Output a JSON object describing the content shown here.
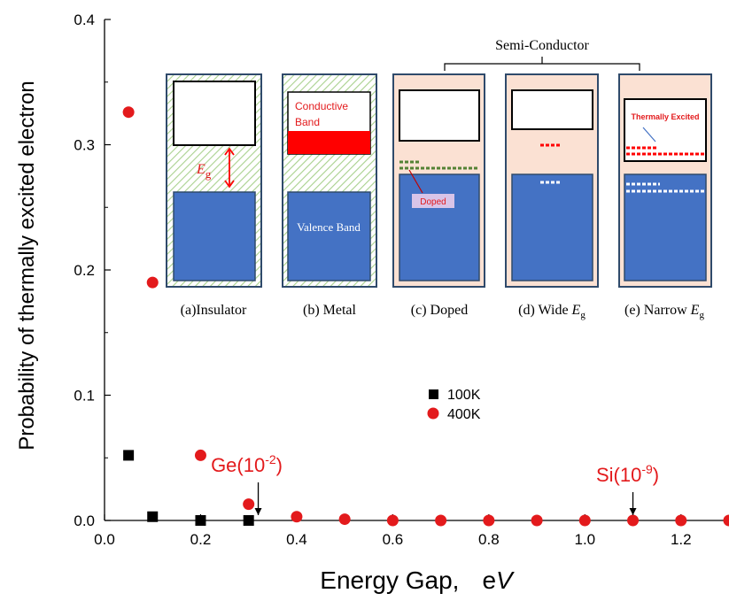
{
  "chart_data": {
    "type": "scatter",
    "xlabel": "Energy Gap,",
    "xlabel_unit_e": "e",
    "xlabel_unit_v": "V",
    "ylabel": "Probability of thermally excited electron",
    "xlim": [
      0.0,
      1.3
    ],
    "ylim": [
      0.0,
      0.4
    ],
    "xticks": [
      "0.0",
      "0.2",
      "0.4",
      "0.6",
      "0.8",
      "1.0",
      "1.2"
    ],
    "xtick_values": [
      0.0,
      0.2,
      0.4,
      0.6,
      0.8,
      1.0,
      1.2
    ],
    "yticks": [
      "0.0",
      "0.1",
      "0.2",
      "0.3",
      "0.4"
    ],
    "ytick_values": [
      0.0,
      0.1,
      0.2,
      0.3,
      0.4
    ],
    "legend_position": "center-right",
    "series": [
      {
        "name": "100K",
        "marker": "square",
        "color": "#000000",
        "x": [
          0.05,
          0.1,
          0.2,
          0.3
        ],
        "y": [
          0.052,
          0.003,
          0.0,
          0.0
        ]
      },
      {
        "name": "400K",
        "marker": "circle",
        "color": "#e31a1c",
        "x": [
          0.05,
          0.1,
          0.2,
          0.3,
          0.4,
          0.5,
          0.6,
          0.7,
          0.8,
          0.9,
          1.0,
          1.1,
          1.2,
          1.3
        ],
        "y": [
          0.326,
          0.19,
          0.052,
          0.013,
          0.003,
          0.001,
          0.0,
          0.0,
          0.0,
          0.0,
          0.0,
          0.0,
          0.0,
          0.0
        ]
      }
    ],
    "annotations": [
      {
        "id": "ge",
        "base": "Ge(10",
        "exp": "-2",
        "close": ")",
        "x": 0.32,
        "y": 0.0,
        "color": "#e31a1c"
      },
      {
        "id": "si",
        "base": "Si(10",
        "exp": "-9",
        "close": ")",
        "x": 1.1,
        "y": 0.0,
        "color": "#e31a1c"
      }
    ],
    "inset": {
      "group_label": "Semi-Conductor",
      "panels": [
        {
          "caption": "(a)Insulator",
          "gap_label": "E",
          "gap_sub": "g"
        },
        {
          "caption": "(b) Metal",
          "conductive_label": "Conductive",
          "conductive_label2": "Band",
          "valence_label": "Valence Band"
        },
        {
          "caption": "(c) Doped",
          "doped_label": "Doped"
        },
        {
          "caption": "(d) Wide ",
          "caption_e": "E",
          "caption_sub": "g"
        },
        {
          "caption": "(e) Narrow ",
          "caption_e": "E",
          "caption_sub": "g",
          "thermal_label": "Thermally Excited"
        }
      ],
      "colors": {
        "valence": "#4472c4",
        "conduction_metal": "#ff0000",
        "pink_bg": "#fbe1d3",
        "hatch": "#a9d18e",
        "panel_border": "#2f4a6b",
        "doped_dash": "#548235",
        "excited_dash": "#ff0000",
        "hole_dash": "#ffffff"
      }
    }
  }
}
